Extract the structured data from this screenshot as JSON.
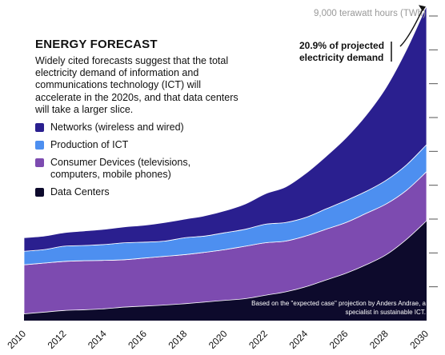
{
  "header": {
    "title": "ENERGY FORECAST",
    "description": "Widely cited forecasts suggest that the total electricity demand of information and communications technology (ICT) will accelerate in the 2020s, and that data centers will take a larger slice."
  },
  "annotation": "20.9% of projected electricity demand",
  "source_note": "Based on the \"expected case\" projection by Anders Andrae, a specialist in sustainable ICT.",
  "colors": {
    "networks": "#2a1f8f",
    "production": "#4d8ff0",
    "consumer": "#7d4bb0",
    "data_centers": "#0d0a2c"
  },
  "chart_data": {
    "type": "area",
    "stacked": true,
    "title": "ENERGY FORECAST",
    "ylabel": "9,000 terawatt hours (TWh)",
    "ylim": [
      0,
      9000
    ],
    "x": [
      2010,
      2011,
      2012,
      2013,
      2014,
      2015,
      2016,
      2017,
      2018,
      2019,
      2020,
      2021,
      2022,
      2023,
      2024,
      2025,
      2026,
      2027,
      2028,
      2029,
      2030
    ],
    "x_tick_labels": [
      "2010",
      "2012",
      "2014",
      "2016",
      "2018",
      "2020",
      "2022",
      "2024",
      "2026",
      "2028",
      "2030"
    ],
    "series": [
      {
        "name": "Data Centers",
        "color": "#0d0a2c",
        "values": [
          200,
          250,
          300,
          320,
          350,
          400,
          430,
          460,
          500,
          550,
          600,
          650,
          750,
          850,
          1000,
          1200,
          1400,
          1650,
          1950,
          2400,
          2950
        ]
      },
      {
        "name": "Consumer Devices (televisions, computers, mobile phones)",
        "color": "#7d4bb0",
        "values": [
          1450,
          1450,
          1450,
          1450,
          1430,
          1400,
          1420,
          1440,
          1450,
          1470,
          1500,
          1550,
          1550,
          1500,
          1500,
          1500,
          1500,
          1520,
          1500,
          1450,
          1450
        ]
      },
      {
        "name": "Production of ICT",
        "color": "#4d8ff0",
        "values": [
          400,
          400,
          450,
          450,
          470,
          500,
          470,
          450,
          500,
          480,
          500,
          500,
          550,
          550,
          550,
          600,
          650,
          650,
          700,
          750,
          800
        ]
      },
      {
        "name": "Networks (wireless and wired)",
        "color": "#2a1f8f",
        "values": [
          400,
          400,
          400,
          430,
          450,
          470,
          500,
          550,
          550,
          600,
          650,
          750,
          900,
          1050,
          1300,
          1550,
          1850,
          2250,
          2750,
          3400,
          4100
        ]
      }
    ]
  }
}
